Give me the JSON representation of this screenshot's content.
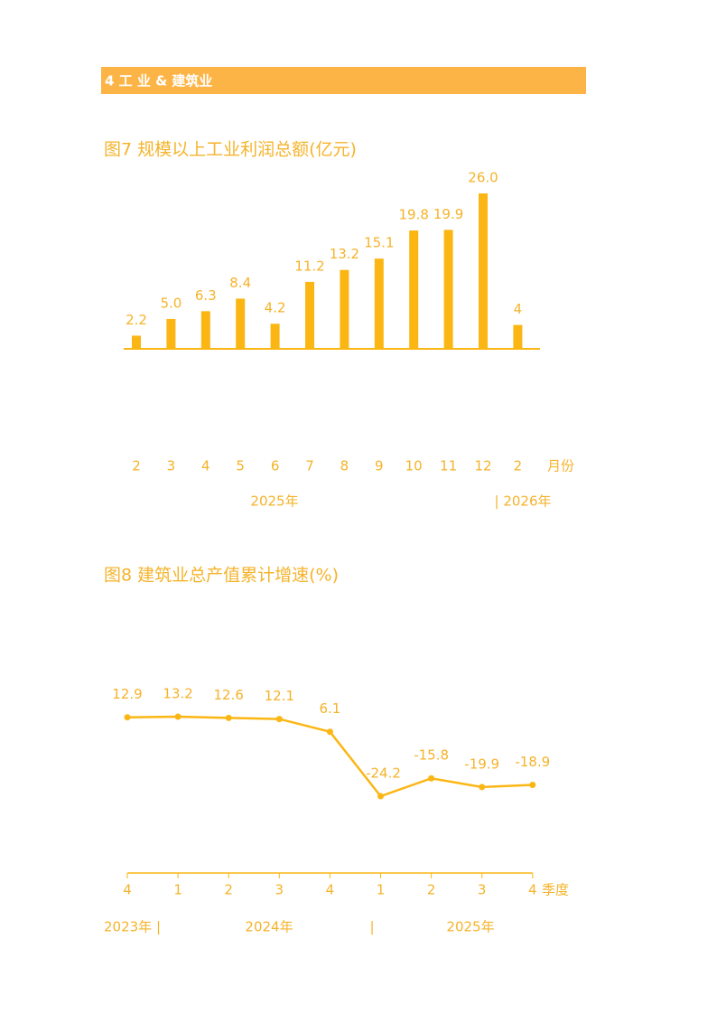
{
  "header": {
    "title": "4 工 业 & 建筑业"
  },
  "chart_data": [
    {
      "type": "bar",
      "title": "图7  规模以上工业利润总额(亿元)",
      "categories": [
        "2",
        "3",
        "4",
        "5",
        "6",
        "7",
        "8",
        "9",
        "10",
        "11",
        "12",
        "2"
      ],
      "values": [
        2.2,
        5.0,
        6.3,
        8.4,
        4.2,
        11.2,
        13.2,
        15.1,
        19.8,
        19.9,
        26.0,
        4
      ],
      "value_labels": [
        "2.2",
        "5.0",
        "6.3",
        "8.4",
        "4.2",
        "11.2",
        "13.2",
        "15.1",
        "19.8",
        "19.9",
        "26.0",
        "4"
      ],
      "color": "#fbb614",
      "x_unit": "月份",
      "year_labels": [
        "2025年",
        "| 2026年"
      ]
    },
    {
      "type": "line",
      "title": "图8  建筑业总产值累计增速(%)",
      "categories": [
        "4",
        "1",
        "2",
        "3",
        "4",
        "1",
        "2",
        "3",
        "4"
      ],
      "values": [
        12.9,
        13.2,
        12.6,
        12.1,
        6.1,
        -24.2,
        -15.8,
        -19.9,
        -18.9
      ],
      "color": "#fbb614",
      "x_unit": "季度",
      "year_labels": [
        "2023年  |",
        "2024年",
        "|",
        "2025年"
      ]
    }
  ]
}
